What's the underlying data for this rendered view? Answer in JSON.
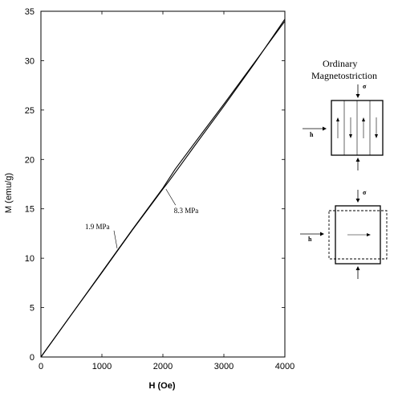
{
  "chart_data": {
    "type": "line",
    "xlabel": "H (Oe)",
    "ylabel": "M (emu/g)",
    "xlim": [
      0,
      4000
    ],
    "ylim": [
      0,
      35
    ],
    "xticks": [
      0,
      1000,
      2000,
      3000,
      4000
    ],
    "yticks": [
      0,
      5,
      10,
      15,
      20,
      25,
      30,
      35
    ],
    "grid": false,
    "series": [
      {
        "name": "1.9 MPa",
        "x": [
          0,
          500,
          1000,
          1500,
          2000,
          2200,
          2500,
          3000,
          3500,
          4000
        ],
        "y": [
          0,
          4.3,
          8.6,
          12.9,
          17.1,
          19.0,
          21.5,
          25.6,
          29.8,
          34.0
        ]
      },
      {
        "name": "8.3 MPa",
        "x": [
          0,
          500,
          1000,
          1500,
          2000,
          2100,
          2300,
          2500,
          3000,
          3500,
          4000
        ],
        "y": [
          0,
          4.3,
          8.55,
          12.85,
          17.0,
          17.8,
          19.5,
          21.2,
          25.4,
          29.7,
          34.2
        ]
      }
    ],
    "annotations": [
      {
        "text": "1.9 MPa",
        "at": [
          1250,
          11.0
        ]
      },
      {
        "text": "8.3 MPa",
        "at": [
          2050,
          17.0
        ]
      }
    ]
  },
  "panel": {
    "title_line1": "Ordinary",
    "title_line2": "Magnetostriction",
    "sigma": "σ",
    "h": "h"
  },
  "colors": {
    "line": "#000000",
    "axis": "#000000",
    "background": "#ffffff"
  }
}
